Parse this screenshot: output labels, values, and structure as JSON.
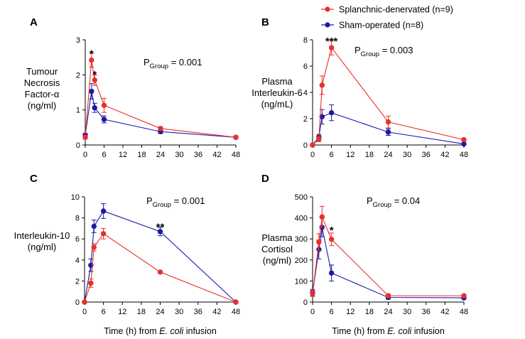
{
  "legend": [
    {
      "label": "Splanchnic-denervated (n=9)",
      "color": "#e8302a"
    },
    {
      "label": "Sham-operated (n=8)",
      "color": "#1a1aa6"
    }
  ],
  "x_axis_label": {
    "prefix": "Time (h) from ",
    "italic": "E. coli",
    "suffix": " infusion"
  },
  "chart_data": [
    {
      "type": "line",
      "panel": "A",
      "ylabel": [
        "Tumour",
        "Necrosis",
        "Factor-α",
        "(ng/ml)"
      ],
      "x": [
        0,
        2,
        3,
        6,
        24,
        48
      ],
      "xticks": [
        "0",
        "6",
        "12",
        "18",
        "24",
        "30",
        "36",
        "42",
        "48"
      ],
      "xlim": [
        0,
        48
      ],
      "ylim": [
        0,
        3
      ],
      "yticks": [
        "0",
        "1",
        "2",
        "3"
      ],
      "pgroup": {
        "prefix": "P",
        "sub": "Group",
        "value": " = 0.001"
      },
      "series": [
        {
          "name": "Splanchnic-denervated (n=9)",
          "values": [
            0.22,
            2.42,
            1.85,
            1.13,
            0.47,
            0.22
          ],
          "errors": [
            0.05,
            0.2,
            0.15,
            0.2,
            0.05,
            0.03
          ]
        },
        {
          "name": "Sham-operated (n=8)",
          "values": [
            0.28,
            1.53,
            1.06,
            0.73,
            0.38,
            0.22
          ],
          "errors": [
            0.05,
            0.22,
            0.13,
            0.1,
            0.05,
            0.03
          ]
        }
      ],
      "annotations": [
        {
          "x": 2,
          "y": 2.62,
          "text": "*"
        },
        {
          "x": 3,
          "y": 2.03,
          "text": "*"
        }
      ]
    },
    {
      "type": "line",
      "panel": "B",
      "ylabel": [
        "Plasma",
        "Interleukin-6",
        "(ng/mL)"
      ],
      "x": [
        0,
        2,
        3,
        6,
        24,
        48
      ],
      "xticks": [
        "0",
        "6",
        "12",
        "18",
        "24",
        "30",
        "36",
        "42",
        "48"
      ],
      "xlim": [
        0,
        48
      ],
      "ylim": [
        0,
        8
      ],
      "yticks": [
        "0",
        "2",
        "4",
        "6",
        "8"
      ],
      "pgroup": {
        "prefix": "P",
        "sub": "Group",
        "value": " = 0.003"
      },
      "series": [
        {
          "name": "Splanchnic-denervated (n=9)",
          "values": [
            0.0,
            0.45,
            4.55,
            7.4,
            1.75,
            0.4
          ],
          "errors": [
            0.05,
            0.2,
            0.7,
            0.55,
            0.45,
            0.1
          ]
        },
        {
          "name": "Sham-operated (n=8)",
          "values": [
            0.0,
            0.6,
            2.15,
            2.45,
            0.98,
            0.08
          ],
          "errors": [
            0.05,
            0.2,
            0.55,
            0.6,
            0.25,
            0.05
          ]
        }
      ],
      "annotations": [
        {
          "x": 6,
          "y": 7.95,
          "text": "***"
        }
      ]
    },
    {
      "type": "line",
      "panel": "C",
      "ylabel": [
        "Interleukin-10",
        "(ng/ml)"
      ],
      "x": [
        0,
        2,
        3,
        6,
        24,
        48
      ],
      "xticks": [
        "0",
        "6",
        "12",
        "18",
        "24",
        "30",
        "36",
        "42",
        "48"
      ],
      "xlim": [
        0,
        48
      ],
      "ylim": [
        0,
        10
      ],
      "yticks": [
        "0",
        "2",
        "4",
        "6",
        "8",
        "10"
      ],
      "pgroup": {
        "prefix": "P",
        "sub": "Group",
        "value": " = 0.001"
      },
      "series": [
        {
          "name": "Splanchnic-denervated (n=9)",
          "values": [
            0.0,
            1.8,
            5.2,
            6.5,
            2.85,
            0.0
          ],
          "errors": [
            0.05,
            0.4,
            0.35,
            0.5,
            0.1,
            0.05
          ]
        },
        {
          "name": "Sham-operated (n=8)",
          "values": [
            0.0,
            3.5,
            7.2,
            8.65,
            6.7,
            0.0
          ],
          "errors": [
            0.05,
            0.6,
            0.6,
            0.7,
            0.4,
            0.05
          ]
        }
      ],
      "annotations": [
        {
          "x": 24,
          "y": 7.2,
          "text": "**"
        }
      ]
    },
    {
      "type": "line",
      "panel": "D",
      "ylabel": [
        "Plasma",
        "Cortisol",
        "(ng/ml)"
      ],
      "x": [
        0,
        2,
        3,
        6,
        24,
        48
      ],
      "xticks": [
        "0",
        "6",
        "12",
        "18",
        "24",
        "30",
        "36",
        "42",
        "48"
      ],
      "xlim": [
        0,
        48
      ],
      "ylim": [
        0,
        500
      ],
      "yticks": [
        "0",
        "100",
        "200",
        "300",
        "400",
        "500"
      ],
      "pgroup": {
        "prefix": "P",
        "sub": "Group",
        "value": " = 0.04"
      },
      "series": [
        {
          "name": "Splanchnic-denervated (n=9)",
          "values": [
            42,
            285,
            405,
            298,
            30,
            30
          ],
          "errors": [
            15,
            40,
            50,
            30,
            8,
            5
          ]
        },
        {
          "name": "Sham-operated (n=8)",
          "values": [
            45,
            250,
            355,
            138,
            22,
            20
          ],
          "errors": [
            15,
            45,
            45,
            38,
            8,
            5
          ]
        }
      ],
      "annotations": [
        {
          "x": 6,
          "y": 345,
          "text": "*"
        }
      ]
    }
  ]
}
